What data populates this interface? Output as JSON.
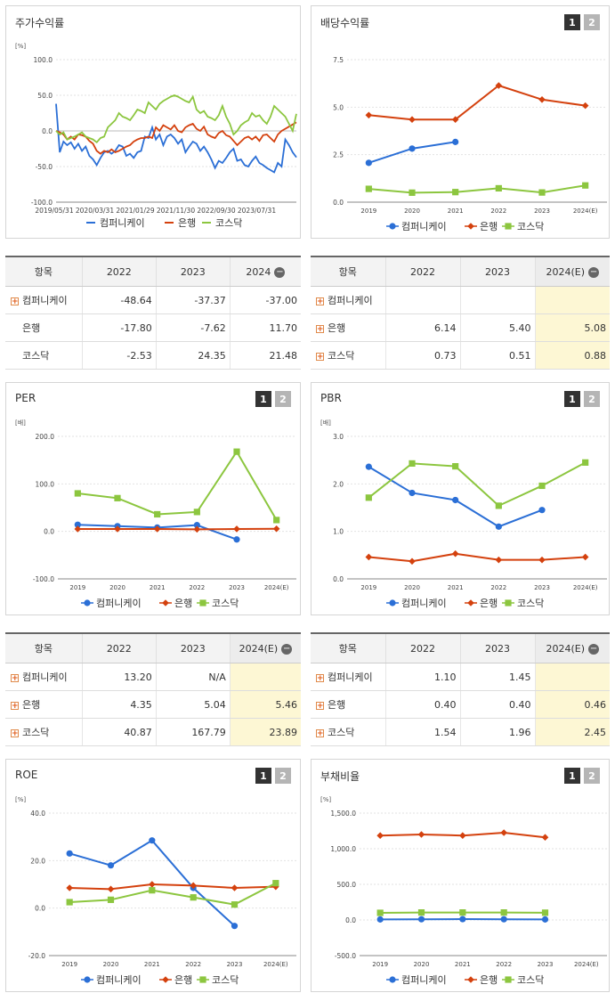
{
  "panels": {
    "stock": {
      "title": "주가수익률",
      "unit": "[%]",
      "tabs": []
    },
    "dividend": {
      "title": "배당수익률",
      "unit": "",
      "tabs": [
        "1",
        "2"
      ]
    },
    "per": {
      "title": "PER",
      "unit": "[배]",
      "tabs": [
        "1",
        "2"
      ]
    },
    "pbr": {
      "title": "PBR",
      "unit": "[배]",
      "tabs": [
        "1",
        "2"
      ]
    },
    "roe": {
      "title": "ROE",
      "unit": "[%]",
      "tabs": [
        "1",
        "2"
      ]
    },
    "debt": {
      "title": "부채비율",
      "unit": "[%]",
      "tabs": [
        "1",
        "2"
      ]
    }
  },
  "legend": [
    "컴퍼니케이",
    "은행",
    "코스닥"
  ],
  "colors": {
    "company": "#2b6fd6",
    "bank": "#d4410e",
    "kosdaq": "#8cc63f"
  },
  "chart_data": [
    {
      "id": "stock",
      "type": "line",
      "ylim": [
        -100,
        100
      ],
      "yticks": [
        "100.0",
        "50.0",
        "0.0",
        "-50.0",
        "-100.0"
      ],
      "x_labels": [
        "2019/05/31",
        "2020/03/31",
        "2021/01/29",
        "2021/11/30",
        "2022/09/30",
        "2023/07/31"
      ],
      "series": [
        {
          "name": "컴퍼니케이",
          "values": [
            38,
            -30,
            -15,
            -20,
            -16,
            -25,
            -18,
            -28,
            -22,
            -35,
            -40,
            -48,
            -38,
            -30,
            -28,
            -32,
            -28,
            -20,
            -22,
            -35,
            -32,
            -38,
            -30,
            -28,
            -8,
            -10,
            5,
            -12,
            -5,
            -20,
            -8,
            -5,
            -10,
            -18,
            -12,
            -30,
            -22,
            -15,
            -18,
            -28,
            -22,
            -30,
            -40,
            -52,
            -42,
            -45,
            -38,
            -30,
            -25,
            -42,
            -40,
            -48,
            -50,
            -42,
            -36,
            -45,
            -48,
            -52,
            -55,
            -58,
            -45,
            -50,
            -12,
            -20,
            -30,
            -37
          ]
        },
        {
          "name": "은행",
          "values": [
            0,
            -2,
            -5,
            -12,
            -8,
            -12,
            -5,
            -6,
            -8,
            -14,
            -18,
            -28,
            -32,
            -28,
            -30,
            -26,
            -30,
            -28,
            -25,
            -22,
            -20,
            -15,
            -12,
            -10,
            -10,
            -8,
            -10,
            5,
            0,
            8,
            5,
            2,
            8,
            0,
            -2,
            5,
            8,
            10,
            3,
            0,
            6,
            -5,
            -8,
            -10,
            -3,
            0,
            -6,
            -8,
            -14,
            -20,
            -15,
            -10,
            -8,
            -12,
            -8,
            -14,
            -6,
            -5,
            -10,
            -15,
            -5,
            0,
            3,
            6,
            9,
            12
          ]
        },
        {
          "name": "코스닥",
          "values": [
            0,
            -5,
            -2,
            -12,
            -10,
            -8,
            -5,
            -2,
            -8,
            -10,
            -12,
            -16,
            -10,
            -8,
            5,
            10,
            15,
            25,
            20,
            18,
            15,
            22,
            30,
            28,
            25,
            40,
            35,
            30,
            38,
            42,
            45,
            48,
            50,
            48,
            45,
            42,
            40,
            48,
            30,
            25,
            28,
            20,
            18,
            15,
            22,
            35,
            20,
            10,
            -5,
            0,
            8,
            12,
            15,
            25,
            20,
            22,
            15,
            10,
            20,
            35,
            30,
            25,
            20,
            10,
            0,
            24
          ]
        }
      ]
    },
    {
      "id": "dividend",
      "type": "line",
      "ylim": [
        0,
        7.5
      ],
      "yticks": [
        "7.5",
        "5.0",
        "2.5",
        "0.0"
      ],
      "categories": [
        "2019",
        "2020",
        "2021",
        "2022",
        "2023",
        "2024(E)"
      ],
      "series": [
        {
          "name": "컴퍼니케이",
          "values": [
            2.07,
            2.82,
            3.17,
            null,
            null,
            null
          ]
        },
        {
          "name": "은행",
          "values": [
            4.58,
            4.35,
            4.35,
            6.14,
            5.4,
            5.08
          ]
        },
        {
          "name": "코스닥",
          "values": [
            0.7,
            0.5,
            0.53,
            0.73,
            0.51,
            0.88
          ]
        }
      ]
    },
    {
      "id": "per",
      "type": "line",
      "ylim": [
        -100,
        200
      ],
      "yticks": [
        "200.0",
        "100.0",
        "0.0",
        "-100.0"
      ],
      "categories": [
        "2019",
        "2020",
        "2021",
        "2022",
        "2023",
        "2024(E)"
      ],
      "series": [
        {
          "name": "컴퍼니케이",
          "values": [
            14,
            11,
            8,
            13.2,
            -17,
            null
          ]
        },
        {
          "name": "은행",
          "values": [
            5,
            5,
            5,
            4.35,
            5.04,
            5.46
          ]
        },
        {
          "name": "코스닥",
          "values": [
            80,
            70,
            36,
            40.87,
            167.79,
            23.89
          ]
        }
      ]
    },
    {
      "id": "pbr",
      "type": "line",
      "ylim": [
        0,
        3
      ],
      "yticks": [
        "3.0",
        "2.0",
        "1.0",
        "0.0"
      ],
      "categories": [
        "2019",
        "2020",
        "2021",
        "2022",
        "2023",
        "2024(E)"
      ],
      "series": [
        {
          "name": "컴퍼니케이",
          "values": [
            2.36,
            1.81,
            1.66,
            1.1,
            1.45,
            null
          ]
        },
        {
          "name": "은행",
          "values": [
            0.46,
            0.37,
            0.53,
            0.4,
            0.4,
            0.46
          ]
        },
        {
          "name": "코스닥",
          "values": [
            1.71,
            2.43,
            2.37,
            1.54,
            1.96,
            2.45
          ]
        }
      ]
    },
    {
      "id": "roe",
      "type": "line",
      "ylim": [
        -20,
        40
      ],
      "yticks": [
        "40.0",
        "20.0",
        "0.0",
        "-20.0"
      ],
      "categories": [
        "2019",
        "2020",
        "2021",
        "2022",
        "2023",
        "2024(E)"
      ],
      "series": [
        {
          "name": "컴퍼니케이",
          "values": [
            23,
            18,
            28.5,
            8.5,
            -7.5,
            null
          ]
        },
        {
          "name": "은행",
          "values": [
            8.5,
            8,
            10,
            9.5,
            8.5,
            9
          ]
        },
        {
          "name": "코스닥",
          "values": [
            2.5,
            3.5,
            7.5,
            4.5,
            1.5,
            10.5
          ]
        }
      ]
    },
    {
      "id": "debt",
      "type": "line",
      "ylim": [
        -500,
        1500
      ],
      "yticks": [
        "1,500.0",
        "1,000.0",
        "500.0",
        "0.0",
        "-500.0"
      ],
      "categories": [
        "2019",
        "2020",
        "2021",
        "2022",
        "2023",
        "2024(E)"
      ],
      "series": [
        {
          "name": "컴퍼니케이",
          "values": [
            8,
            10,
            12,
            10,
            8,
            null
          ]
        },
        {
          "name": "은행",
          "values": [
            1185,
            1200,
            1185,
            1225,
            1160,
            null
          ]
        },
        {
          "name": "코스닥",
          "values": [
            100,
            105,
            105,
            105,
            102,
            null
          ]
        }
      ]
    }
  ],
  "tables": {
    "stock": {
      "headers": [
        "항목",
        "2022",
        "2023",
        "2024"
      ],
      "rows": [
        {
          "label": "컴퍼니케이",
          "expand": true,
          "values": [
            "-48.64",
            "-37.37",
            "-37.00"
          ]
        },
        {
          "label": "은행",
          "expand": false,
          "values": [
            "-17.80",
            "-7.62",
            "11.70"
          ]
        },
        {
          "label": "코스닥",
          "expand": false,
          "values": [
            "-2.53",
            "24.35",
            "21.48"
          ]
        }
      ]
    },
    "dividend": {
      "headers": [
        "항목",
        "2022",
        "2023",
        "2024(E)"
      ],
      "rows": [
        {
          "label": "컴퍼니케이",
          "expand": true,
          "values": [
            "",
            "",
            ""
          ]
        },
        {
          "label": "은행",
          "expand": true,
          "values": [
            "6.14",
            "5.40",
            "5.08"
          ]
        },
        {
          "label": "코스닥",
          "expand": true,
          "values": [
            "0.73",
            "0.51",
            "0.88"
          ]
        }
      ]
    },
    "per": {
      "headers": [
        "항목",
        "2022",
        "2023",
        "2024(E)"
      ],
      "rows": [
        {
          "label": "컴퍼니케이",
          "expand": true,
          "values": [
            "13.20",
            "N/A",
            ""
          ]
        },
        {
          "label": "은행",
          "expand": true,
          "values": [
            "4.35",
            "5.04",
            "5.46"
          ]
        },
        {
          "label": "코스닥",
          "expand": true,
          "values": [
            "40.87",
            "167.79",
            "23.89"
          ]
        }
      ]
    },
    "pbr": {
      "headers": [
        "항목",
        "2022",
        "2023",
        "2024(E)"
      ],
      "rows": [
        {
          "label": "컴퍼니케이",
          "expand": true,
          "values": [
            "1.10",
            "1.45",
            ""
          ]
        },
        {
          "label": "은행",
          "expand": true,
          "values": [
            "0.40",
            "0.40",
            "0.46"
          ]
        },
        {
          "label": "코스닥",
          "expand": true,
          "values": [
            "1.54",
            "1.96",
            "2.45"
          ]
        }
      ]
    }
  }
}
